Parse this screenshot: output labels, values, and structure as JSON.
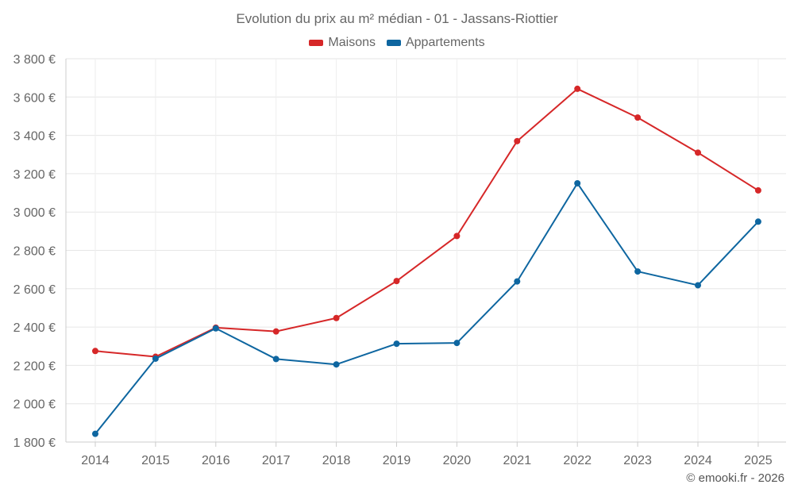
{
  "chart_data": {
    "type": "line",
    "title": "Evolution du prix au m² médian - 01 - Jassans-Riottier",
    "categories": [
      "2014",
      "2015",
      "2016",
      "2017",
      "2018",
      "2019",
      "2020",
      "2021",
      "2022",
      "2023",
      "2024",
      "2025"
    ],
    "series": [
      {
        "name": "Maisons",
        "color": "#d62728",
        "values": [
          2275,
          2245,
          2397,
          2377,
          2447,
          2640,
          2875,
          3370,
          3643,
          3493,
          3310,
          3113
        ]
      },
      {
        "name": "Appartements",
        "color": "#0e66a0",
        "values": [
          1843,
          2235,
          2393,
          2233,
          2205,
          2313,
          2317,
          2638,
          3150,
          2690,
          2618,
          2950
        ]
      }
    ],
    "ylim": [
      1800,
      3800
    ],
    "yticks": [
      1800,
      2000,
      2200,
      2400,
      2600,
      2800,
      3000,
      3200,
      3400,
      3600,
      3800
    ],
    "ytick_labels": [
      "1 800 €",
      "2 000 €",
      "2 200 €",
      "2 400 €",
      "2 600 €",
      "2 800 €",
      "3 000 €",
      "3 200 €",
      "3 400 €",
      "3 600 €",
      "3 800 €"
    ],
    "xlabel": "",
    "ylabel": "",
    "grid": true,
    "legend_position": "top-center"
  },
  "footer": {
    "copyright": "© emooki.fr - 2026"
  }
}
